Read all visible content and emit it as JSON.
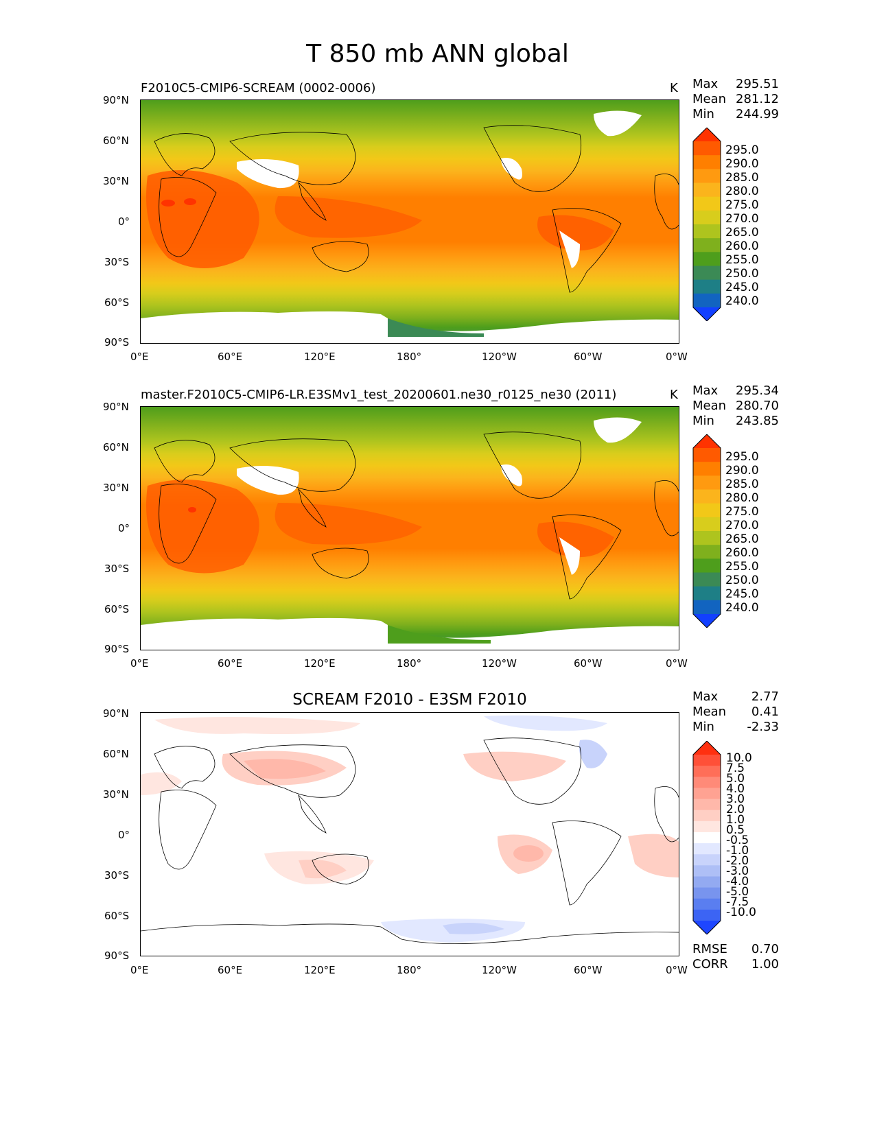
{
  "title": "T 850 mb ANN global",
  "axes": {
    "lat_ticks": [
      "90°N",
      "60°N",
      "30°N",
      "0°",
      "30°S",
      "60°S",
      "90°S"
    ],
    "lon_ticks": [
      "0°E",
      "60°E",
      "120°E",
      "180°",
      "120°W",
      "60°W",
      "0°W"
    ]
  },
  "panels": [
    {
      "id": "test",
      "title": "F2010C5-CMIP6-SCREAM (0002-0006)",
      "units": "K",
      "stats": {
        "max_label": "Max",
        "max": "295.51",
        "mean_label": "Mean",
        "mean": "281.12",
        "min_label": "Min",
        "min": "244.99"
      },
      "colorbar": {
        "ticks": [
          "295.0",
          "290.0",
          "285.0",
          "280.0",
          "275.0",
          "270.0",
          "265.0",
          "260.0",
          "255.0",
          "250.0",
          "245.0",
          "240.0"
        ],
        "colors": [
          "#ff3300",
          "#ff5a00",
          "#ff7f00",
          "#ff9a10",
          "#fbb41c",
          "#f2c818",
          "#d8cd1c",
          "#aec41e",
          "#7fb01d",
          "#4e9e1c",
          "#3b8a55",
          "#1e7f86",
          "#1264c0",
          "#1240ff"
        ]
      }
    },
    {
      "id": "reference",
      "title": "master.F2010C5-CMIP6-LR.E3SMv1_test_20200601.ne30_r0125_ne30 (2011)",
      "units": "K",
      "stats": {
        "max_label": "Max",
        "max": "295.34",
        "mean_label": "Mean",
        "mean": "280.70",
        "min_label": "Min",
        "min": "243.85"
      },
      "colorbar": {
        "ticks": [
          "295.0",
          "290.0",
          "285.0",
          "280.0",
          "275.0",
          "270.0",
          "265.0",
          "260.0",
          "255.0",
          "250.0",
          "245.0",
          "240.0"
        ],
        "colors": [
          "#ff3300",
          "#ff5a00",
          "#ff7f00",
          "#ff9a10",
          "#fbb41c",
          "#f2c818",
          "#d8cd1c",
          "#aec41e",
          "#7fb01d",
          "#4e9e1c",
          "#3b8a55",
          "#1e7f86",
          "#1264c0",
          "#1240ff"
        ]
      }
    },
    {
      "id": "difference",
      "title": "SCREAM F2010 - E3SM F2010",
      "units": "",
      "stats": {
        "max_label": "Max",
        "max": "2.77",
        "mean_label": "Mean",
        "mean": "0.41",
        "min_label": "Min",
        "min": "-2.33"
      },
      "extra_stats": {
        "rmse_label": "RMSE",
        "rmse": "0.70",
        "corr_label": "CORR",
        "corr": "1.00"
      },
      "colorbar": {
        "ticks": [
          "10.0",
          "7.5",
          "5.0",
          "4.0",
          "3.0",
          "2.0",
          "1.0",
          "0.5",
          "-0.5",
          "-1.0",
          "-2.0",
          "-3.0",
          "-4.0",
          "-5.0",
          "-7.5",
          "-10.0"
        ],
        "colors": [
          "#ff3010",
          "#ff5038",
          "#ff6e58",
          "#ff8a78",
          "#ffa292",
          "#ffb8aa",
          "#ffcfc4",
          "#ffe6e0",
          "#ffffff",
          "#e2e8ff",
          "#c8d3fb",
          "#aebff6",
          "#93aaf1",
          "#7894ee",
          "#5a7ef0",
          "#3c64f4",
          "#1e46ff"
        ]
      }
    }
  ],
  "legend_colors": {
    "land_outline": "#000000",
    "missing": "#ffffff"
  }
}
